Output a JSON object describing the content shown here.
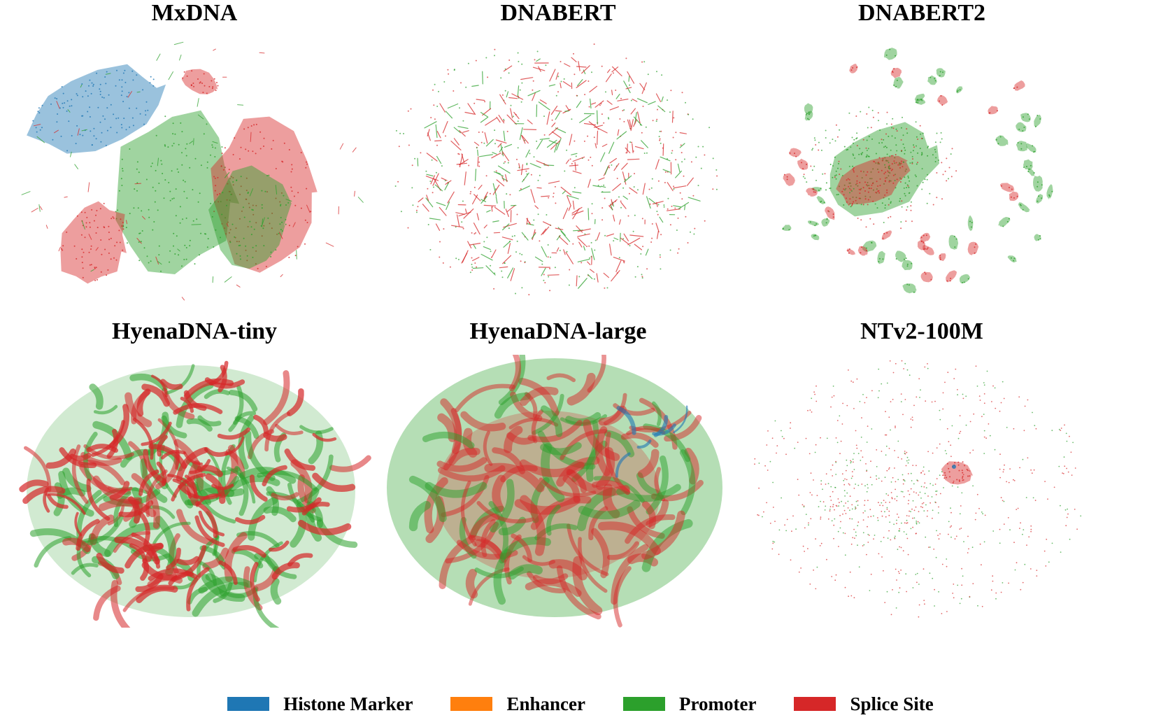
{
  "chart_data": [
    {
      "type": "scatter",
      "title": "MxDNA",
      "xlabel": "",
      "ylabel": "",
      "grid": false,
      "series": [
        {
          "name": "Histone Marker",
          "color": "#1f77b4"
        },
        {
          "name": "Enhancer",
          "color": "#ff7f0e"
        },
        {
          "name": "Promoter",
          "color": "#2ca02c"
        },
        {
          "name": "Splice Site",
          "color": "#d62728"
        }
      ]
    },
    {
      "type": "scatter",
      "title": "DNABERT",
      "xlabel": "",
      "ylabel": "",
      "grid": false,
      "series": [
        {
          "name": "Histone Marker",
          "color": "#1f77b4"
        },
        {
          "name": "Enhancer",
          "color": "#ff7f0e"
        },
        {
          "name": "Promoter",
          "color": "#2ca02c"
        },
        {
          "name": "Splice Site",
          "color": "#d62728"
        }
      ]
    },
    {
      "type": "scatter",
      "title": "DNABERT2",
      "xlabel": "",
      "ylabel": "",
      "grid": false,
      "series": [
        {
          "name": "Histone Marker",
          "color": "#1f77b4"
        },
        {
          "name": "Enhancer",
          "color": "#ff7f0e"
        },
        {
          "name": "Promoter",
          "color": "#2ca02c"
        },
        {
          "name": "Splice Site",
          "color": "#d62728"
        }
      ]
    },
    {
      "type": "scatter",
      "title": "HyenaDNA-tiny",
      "xlabel": "",
      "ylabel": "",
      "grid": false,
      "series": [
        {
          "name": "Histone Marker",
          "color": "#1f77b4"
        },
        {
          "name": "Enhancer",
          "color": "#ff7f0e"
        },
        {
          "name": "Promoter",
          "color": "#2ca02c"
        },
        {
          "name": "Splice Site",
          "color": "#d62728"
        }
      ]
    },
    {
      "type": "scatter",
      "title": "HyenaDNA-large",
      "xlabel": "",
      "ylabel": "",
      "grid": false,
      "series": [
        {
          "name": "Histone Marker",
          "color": "#1f77b4"
        },
        {
          "name": "Enhancer",
          "color": "#ff7f0e"
        },
        {
          "name": "Promoter",
          "color": "#2ca02c"
        },
        {
          "name": "Splice Site",
          "color": "#d62728"
        }
      ]
    },
    {
      "type": "scatter",
      "title": "NTv2-100M",
      "xlabel": "",
      "ylabel": "",
      "grid": false,
      "series": [
        {
          "name": "Histone Marker",
          "color": "#1f77b4"
        },
        {
          "name": "Enhancer",
          "color": "#ff7f0e"
        },
        {
          "name": "Promoter",
          "color": "#2ca02c"
        },
        {
          "name": "Splice Site",
          "color": "#d62728"
        }
      ]
    }
  ],
  "legend": {
    "placement": "bottom-center",
    "items": [
      {
        "label": "Histone Marker",
        "color": "#1f77b4"
      },
      {
        "label": "Enhancer",
        "color": "#ff7f0e"
      },
      {
        "label": "Promoter",
        "color": "#2ca02c"
      },
      {
        "label": "Splice Site",
        "color": "#d62728"
      }
    ]
  }
}
